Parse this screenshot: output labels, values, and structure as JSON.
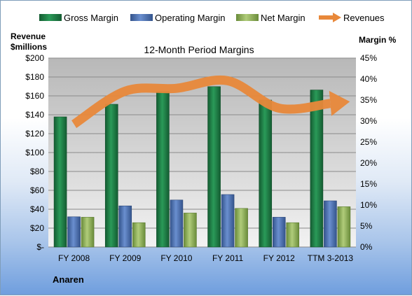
{
  "chart_data": {
    "type": "bar",
    "title": "12-Month Period Margins",
    "company": "Anaren",
    "y_left_label_line1": "Revenue",
    "y_left_label_line2": "$millions",
    "y_right_label": "Margin %",
    "categories": [
      "FY 2008",
      "FY 2009",
      "FY 2010",
      "FY 2011",
      "FY 2012",
      "TTM 3-2013"
    ],
    "y_left_ticks": [
      "$-",
      "$20",
      "$40",
      "$60",
      "$80",
      "$100",
      "$120",
      "$140",
      "$160",
      "$180",
      "$200"
    ],
    "y_right_ticks": [
      "0%",
      "5%",
      "10%",
      "15%",
      "20%",
      "25%",
      "30%",
      "35%",
      "40%",
      "45%"
    ],
    "y_left_lim": [
      0,
      200
    ],
    "y_right_lim": [
      0,
      45
    ],
    "legend_position": "top",
    "grid": true,
    "series": [
      {
        "name": "Gross Margin",
        "axis": "right",
        "color": "#1e7b45",
        "values": [
          31,
          34,
          37,
          38.2,
          35,
          37.4
        ]
      },
      {
        "name": "Operating Margin",
        "axis": "right",
        "color": "#4a6fb0",
        "values": [
          7.2,
          9.8,
          11.2,
          12.5,
          7.1,
          11
        ]
      },
      {
        "name": "Net Margin",
        "axis": "right",
        "color": "#8aae52",
        "values": [
          7.1,
          5.8,
          8.1,
          9.2,
          5.8,
          9.6
        ]
      },
      {
        "name": "Revenues",
        "axis": "left",
        "color": "#e8883a",
        "type": "line",
        "values": [
          130,
          165,
          168,
          176,
          147,
          152
        ]
      }
    ]
  }
}
